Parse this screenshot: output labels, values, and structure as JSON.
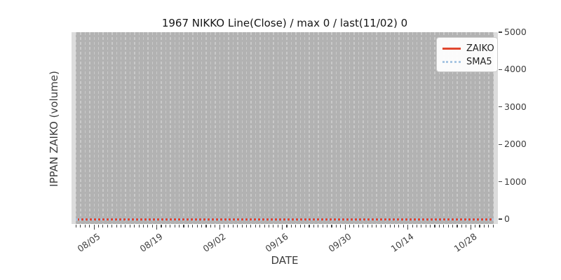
{
  "figure": {
    "title": "1967 NIKKO Line(Close) / max 0 / last(11/02) 0",
    "xlabel": "DATE",
    "ylabel": "IPPAN ZAIKO (volume)"
  },
  "legend": {
    "position": "upper-right",
    "items": [
      {
        "label": "ZAIKO",
        "color": "#e0462e",
        "line_style": "solid"
      },
      {
        "label": "SMA5",
        "color": "#a8c6e2",
        "line_style": "dotted"
      }
    ]
  },
  "colors": {
    "axes_background": "#dcdcdc",
    "data_band_background": "#b2b2b2",
    "gridline": "#c9c9c9",
    "zaiko_line": "#e0462e",
    "sma5_line": "#a8c6e2",
    "tick_text": "#3d3d3d",
    "title_text": "#161616"
  },
  "chart_data": {
    "type": "line",
    "title": "1967 NIKKO Line(Close) / max 0 / last(11/02) 0",
    "xlabel": "DATE",
    "ylabel": "IPPAN ZAIKO (volume)",
    "x_major_tick_labels": [
      "08/05",
      "08/19",
      "09/02",
      "09/16",
      "09/30",
      "10/14",
      "10/28"
    ],
    "x_major_day_indices": [
      4,
      18,
      32,
      46,
      60,
      74,
      88
    ],
    "x_day_count": 94,
    "y_tick_labels": [
      "0",
      "1000",
      "2000",
      "3000",
      "4000",
      "5000"
    ],
    "ylim": [
      0,
      5000
    ],
    "grid": {
      "vertical_daily_dashed": true,
      "horizontal": false
    },
    "legend_position": "upper-right",
    "series": [
      {
        "name": "ZAIKO",
        "color": "#e0462e",
        "line_style": "solid",
        "constant_value": 0
      },
      {
        "name": "SMA5",
        "color": "#a8c6e2",
        "line_style": "dotted",
        "constant_value": 0
      }
    ],
    "stats": {
      "max": 0,
      "last_date": "11/02",
      "last_value": 0
    }
  }
}
